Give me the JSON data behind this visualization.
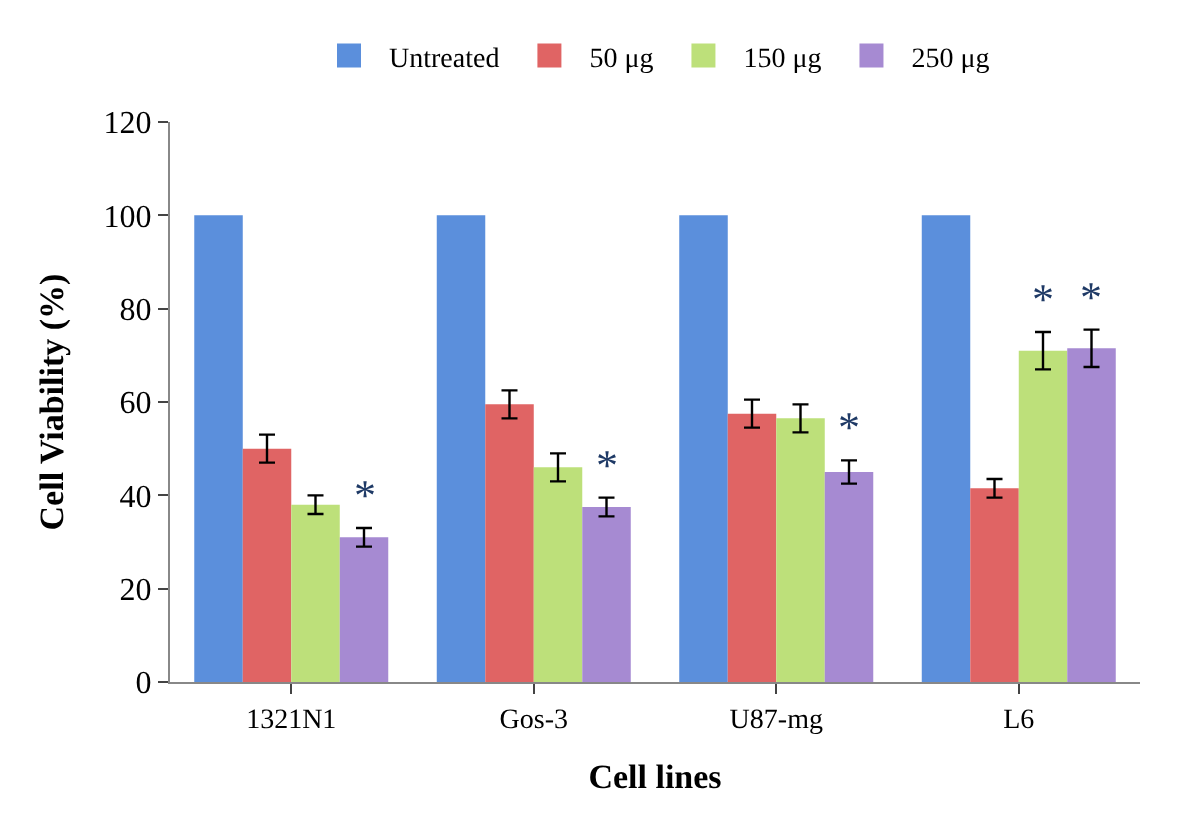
{
  "chart_data": {
    "type": "bar",
    "xlabel": "Cell lines",
    "ylabel": "Cell Viability (%)",
    "categories": [
      "1321N1",
      "Gos-3",
      "U87-mg",
      "L6"
    ],
    "series": [
      {
        "name": "Untreated",
        "color": "#5b8fdc",
        "values": [
          100,
          100,
          100,
          100
        ]
      },
      {
        "name": "50 μg",
        "color": "#e06464",
        "values": [
          50,
          59.5,
          57.5,
          41.5
        ],
        "errors": [
          3,
          3,
          3,
          2
        ]
      },
      {
        "name": "150 μg",
        "color": "#bde07a",
        "values": [
          38,
          46,
          56.5,
          71
        ],
        "errors": [
          2,
          3,
          3,
          4
        ],
        "value_labels": [
          null,
          null,
          null,
          "*"
        ]
      },
      {
        "name": "250 μg",
        "color": "#a68ad2",
        "values": [
          31,
          37.5,
          45,
          71.5
        ],
        "errors": [
          2,
          2,
          2.5,
          4
        ],
        "value_labels": [
          "*",
          "*",
          "*",
          "*"
        ]
      }
    ],
    "ylim": [
      0,
      120
    ],
    "yticks": [
      0,
      20,
      40,
      60,
      80,
      100,
      120
    ],
    "legend": "top"
  }
}
